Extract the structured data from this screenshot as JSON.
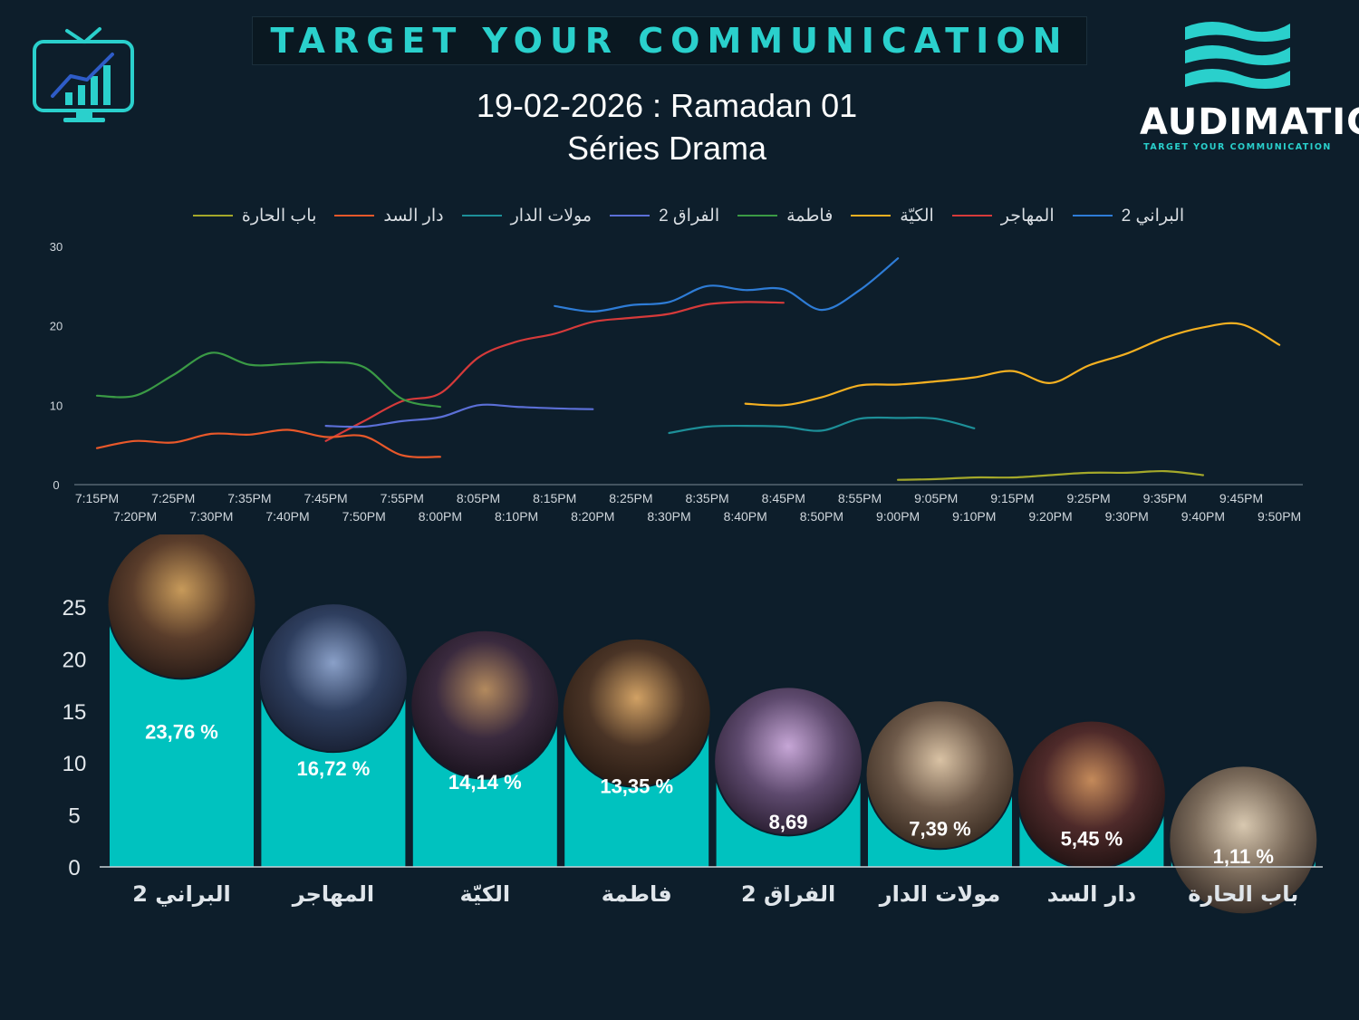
{
  "header": {
    "banner_text": "TARGET YOUR COMMUNICATION",
    "title": "19-02-2026 : Ramadan 01",
    "subtitle": "Séries Drama",
    "brand_name": "AUDIMATIC",
    "brand_tagline": "TARGET YOUR COMMUNICATION",
    "tv_icon": "tv-chart-icon",
    "accent_color": "#2ad0cc",
    "background_color": "#0d1e2b"
  },
  "chart_data": [
    {
      "type": "line",
      "legend_position": "top",
      "grid": false,
      "ylim": [
        0,
        30
      ],
      "y_ticks": [
        0,
        10,
        20,
        30
      ],
      "x_ticks_row1": [
        "7:15PM",
        "7:25PM",
        "7:35PM",
        "7:45PM",
        "7:55PM",
        "8:05PM",
        "8:15PM",
        "8:25PM",
        "8:35PM",
        "8:45PM",
        "8:55PM",
        "9:05PM",
        "9:15PM",
        "9:25PM",
        "9:35PM",
        "9:45PM"
      ],
      "x_ticks_row2": [
        "7:20PM",
        "7:30PM",
        "7:40PM",
        "7:50PM",
        "8:00PM",
        "8:10PM",
        "8:20PM",
        "8:30PM",
        "8:40PM",
        "8:50PM",
        "9:00PM",
        "9:10PM",
        "9:20PM",
        "9:30PM",
        "9:40PM",
        "9:50PM"
      ],
      "series": [
        {
          "name": "البراني 2",
          "color": "#2e7cd6",
          "points": [
            [
              "8:15PM",
              22.5
            ],
            [
              "8:20PM",
              21.8
            ],
            [
              "8:25PM",
              22.6
            ],
            [
              "8:30PM",
              23.0
            ],
            [
              "8:35PM",
              25.0
            ],
            [
              "8:40PM",
              24.5
            ],
            [
              "8:45PM",
              24.6
            ],
            [
              "8:50PM",
              22.0
            ],
            [
              "8:55PM",
              24.5
            ],
            [
              "9:00PM",
              28.5
            ]
          ]
        },
        {
          "name": "المهاجر",
          "color": "#d63a3a",
          "points": [
            [
              "7:45PM",
              5.5
            ],
            [
              "7:50PM",
              8.0
            ],
            [
              "7:55PM",
              10.5
            ],
            [
              "8:00PM",
              11.5
            ],
            [
              "8:05PM",
              16.0
            ],
            [
              "8:10PM",
              18.0
            ],
            [
              "8:15PM",
              19.0
            ],
            [
              "8:20PM",
              20.5
            ],
            [
              "8:25PM",
              21.0
            ],
            [
              "8:30PM",
              21.5
            ],
            [
              "8:35PM",
              22.7
            ],
            [
              "8:40PM",
              23.0
            ],
            [
              "8:45PM",
              22.9
            ]
          ]
        },
        {
          "name": "الكيّة",
          "color": "#f4b021",
          "points": [
            [
              "8:40PM",
              10.2
            ],
            [
              "8:45PM",
              10.0
            ],
            [
              "8:50PM",
              11.0
            ],
            [
              "8:55PM",
              12.5
            ],
            [
              "9:00PM",
              12.6
            ],
            [
              "9:05PM",
              13.0
            ],
            [
              "9:10PM",
              13.5
            ],
            [
              "9:15PM",
              14.3
            ],
            [
              "9:20PM",
              12.8
            ],
            [
              "9:25PM",
              15.0
            ],
            [
              "9:30PM",
              16.5
            ],
            [
              "9:35PM",
              18.5
            ],
            [
              "9:40PM",
              19.8
            ],
            [
              "9:45PM",
              20.2
            ],
            [
              "9:50PM",
              17.6
            ]
          ]
        },
        {
          "name": "فاطمة",
          "color": "#3a9a45",
          "points": [
            [
              "7:15PM",
              11.2
            ],
            [
              "7:20PM",
              11.2
            ],
            [
              "7:25PM",
              13.8
            ],
            [
              "7:30PM",
              16.6
            ],
            [
              "7:35PM",
              15.1
            ],
            [
              "7:40PM",
              15.2
            ],
            [
              "7:45PM",
              15.4
            ],
            [
              "7:50PM",
              14.8
            ],
            [
              "7:55PM",
              10.8
            ],
            [
              "8:00PM",
              9.8
            ]
          ]
        },
        {
          "name": "الفراق 2",
          "color": "#5b6fd6",
          "points": [
            [
              "7:45PM",
              7.4
            ],
            [
              "7:50PM",
              7.3
            ],
            [
              "7:55PM",
              8.0
            ],
            [
              "8:00PM",
              8.5
            ],
            [
              "8:05PM",
              10.0
            ],
            [
              "8:10PM",
              9.8
            ],
            [
              "8:15PM",
              9.6
            ],
            [
              "8:20PM",
              9.5
            ]
          ]
        },
        {
          "name": "مولات الدار",
          "color": "#1d8f98",
          "points": [
            [
              "8:30PM",
              6.5
            ],
            [
              "8:35PM",
              7.3
            ],
            [
              "8:40PM",
              7.4
            ],
            [
              "8:45PM",
              7.3
            ],
            [
              "8:50PM",
              6.8
            ],
            [
              "8:55PM",
              8.3
            ],
            [
              "9:00PM",
              8.4
            ],
            [
              "9:05PM",
              8.3
            ],
            [
              "9:10PM",
              7.1
            ]
          ]
        },
        {
          "name": "دار السد",
          "color": "#e8582a",
          "points": [
            [
              "7:15PM",
              4.6
            ],
            [
              "7:20PM",
              5.5
            ],
            [
              "7:25PM",
              5.3
            ],
            [
              "7:30PM",
              6.4
            ],
            [
              "7:35PM",
              6.3
            ],
            [
              "7:40PM",
              6.9
            ],
            [
              "7:45PM",
              6.0
            ],
            [
              "7:50PM",
              6.1
            ],
            [
              "7:55PM",
              3.7
            ],
            [
              "8:00PM",
              3.5
            ]
          ]
        },
        {
          "name": "باب الحارة",
          "color": "#a4a82a",
          "points": [
            [
              "9:00PM",
              0.6
            ],
            [
              "9:05PM",
              0.7
            ],
            [
              "9:10PM",
              0.9
            ],
            [
              "9:15PM",
              0.9
            ],
            [
              "9:20PM",
              1.2
            ],
            [
              "9:25PM",
              1.5
            ],
            [
              "9:30PM",
              1.5
            ],
            [
              "9:35PM",
              1.7
            ],
            [
              "9:40PM",
              1.2
            ]
          ]
        }
      ]
    },
    {
      "type": "bar",
      "ylim": [
        0,
        27
      ],
      "y_ticks": [
        0,
        5,
        10,
        15,
        20,
        25
      ],
      "bar_color": "#00c2bf",
      "categories": [
        "البراني 2",
        "المهاجر",
        "الكيّة",
        "فاطمة",
        "الفراق 2",
        "مولات الدار",
        "دار السد",
        "باب الحارة"
      ],
      "values": [
        23.76,
        16.72,
        14.14,
        13.35,
        8.69,
        7.39,
        5.45,
        1.11
      ],
      "value_labels": [
        "23,76 %",
        "16,72 %",
        "14,14 %",
        "13,35 %",
        "8,69",
        "7,39 %",
        "5,45 %",
        "1,11 %"
      ]
    }
  ]
}
